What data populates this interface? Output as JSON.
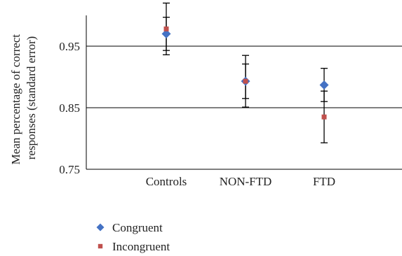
{
  "chart_data": {
    "type": "scatter",
    "categories": [
      "Controls",
      "NON-FTD",
      "FTD"
    ],
    "ylabel": "Mean percentage of correct responses (standard error)",
    "ylabel_lines": [
      "Mean percentage of correct",
      "responses (standard error)"
    ],
    "ylim": [
      0.75,
      1.0
    ],
    "yticks": [
      0.75,
      0.85,
      0.95
    ],
    "ytick_labels": [
      "0.75",
      "0.85",
      "0.95"
    ],
    "grid": true,
    "legend_position": "bottom-left",
    "series": [
      {
        "name": "Congruent",
        "marker": "diamond",
        "color": "#4472c4",
        "values": [
          0.97,
          0.893,
          0.887
        ],
        "error": [
          0.027,
          0.028,
          0.027
        ]
      },
      {
        "name": "Incongruent",
        "marker": "square",
        "color": "#c0504d",
        "values": [
          0.978,
          0.893,
          0.835
        ],
        "error": [
          0.042,
          0.042,
          0.042
        ]
      }
    ]
  }
}
